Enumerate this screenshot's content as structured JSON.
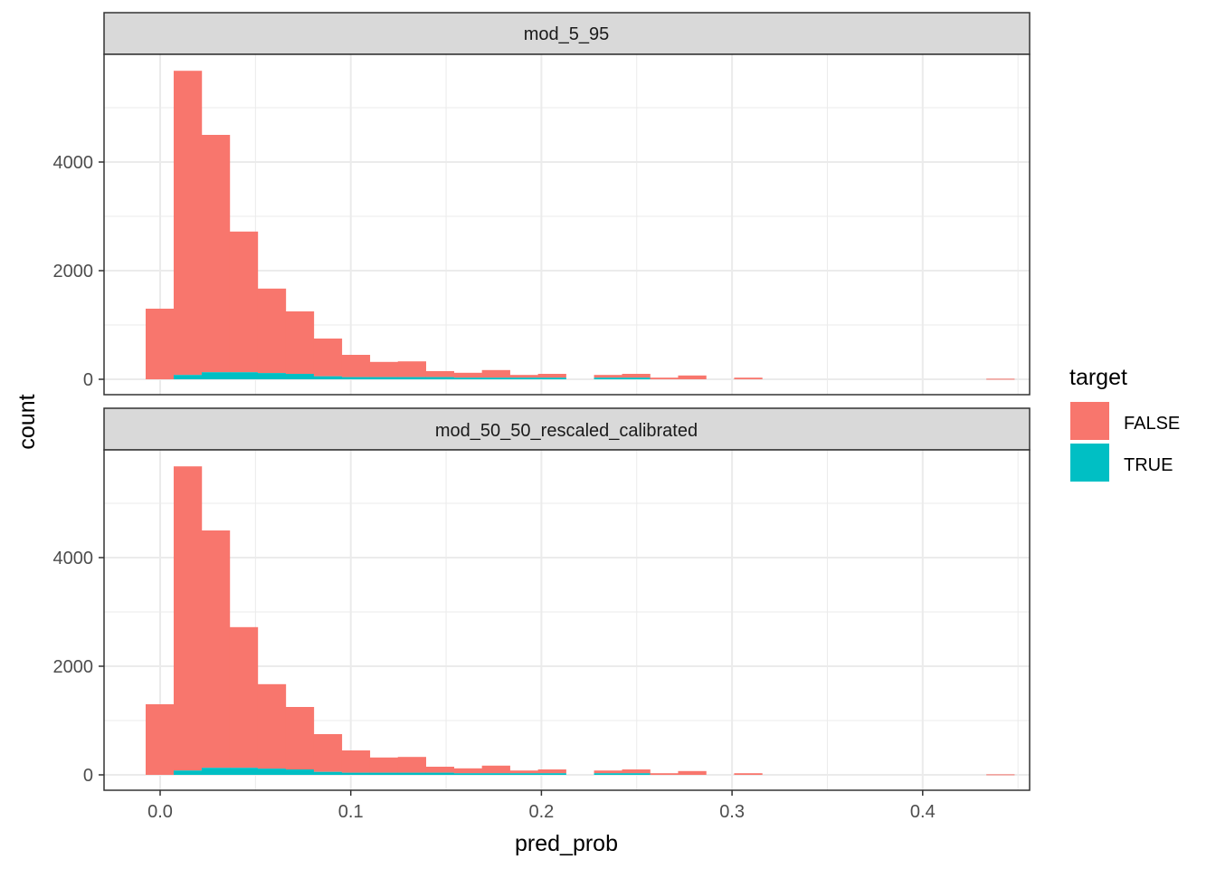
{
  "chart_data": {
    "type": "bar",
    "subtype": "stacked-histogram-faceted",
    "xlabel": "pred_prob",
    "ylabel": "count",
    "x_ticks": [
      0.0,
      0.1,
      0.2,
      0.3,
      0.4
    ],
    "x_tick_labels": [
      "0.0",
      "0.1",
      "0.2",
      "0.3",
      "0.4"
    ],
    "xlim": [
      -0.03,
      0.45
    ],
    "y_ticks": [
      0,
      2000,
      4000
    ],
    "y_tick_labels": [
      "0",
      "2000",
      "4000"
    ],
    "ylim": [
      -300,
      6000
    ],
    "bin_width": 0.0147,
    "bin_start": -0.0076,
    "grid": true,
    "legend": {
      "title": "target",
      "position": "right",
      "entries": [
        {
          "label": "FALSE",
          "color": "#F8766D"
        },
        {
          "label": "TRUE",
          "color": "#00BFC4"
        }
      ]
    },
    "facets": [
      {
        "title": "mod_5_95",
        "series": [
          {
            "name": "FALSE",
            "values": [
              1300,
              5600,
              4370,
              2590,
              1555,
              1150,
              695,
              410,
              280,
              290,
              110,
              90,
              140,
              50,
              70,
              0,
              50,
              70,
              30,
              70,
              0,
              30,
              0,
              0,
              0,
              0,
              0,
              0,
              0,
              0,
              10
            ]
          },
          {
            "name": "TRUE",
            "values": [
              0,
              80,
              130,
              130,
              115,
              100,
              55,
              40,
              40,
              40,
              40,
              30,
              30,
              30,
              30,
              0,
              30,
              30,
              0,
              0,
              0,
              0,
              0,
              0,
              0,
              0,
              0,
              0,
              0,
              0,
              0
            ]
          }
        ]
      },
      {
        "title": "mod_50_50_rescaled_calibrated",
        "series": [
          {
            "name": "FALSE",
            "values": [
              1300,
              5600,
              4370,
              2590,
              1555,
              1150,
              695,
              410,
              280,
              290,
              110,
              90,
              140,
              50,
              70,
              0,
              50,
              70,
              30,
              70,
              0,
              30,
              0,
              0,
              0,
              0,
              0,
              0,
              0,
              0,
              10
            ]
          },
          {
            "name": "TRUE",
            "values": [
              0,
              80,
              130,
              130,
              115,
              100,
              55,
              40,
              40,
              40,
              40,
              30,
              30,
              30,
              30,
              0,
              30,
              30,
              0,
              0,
              0,
              0,
              0,
              0,
              0,
              0,
              0,
              0,
              0,
              0,
              0
            ]
          }
        ]
      }
    ]
  }
}
